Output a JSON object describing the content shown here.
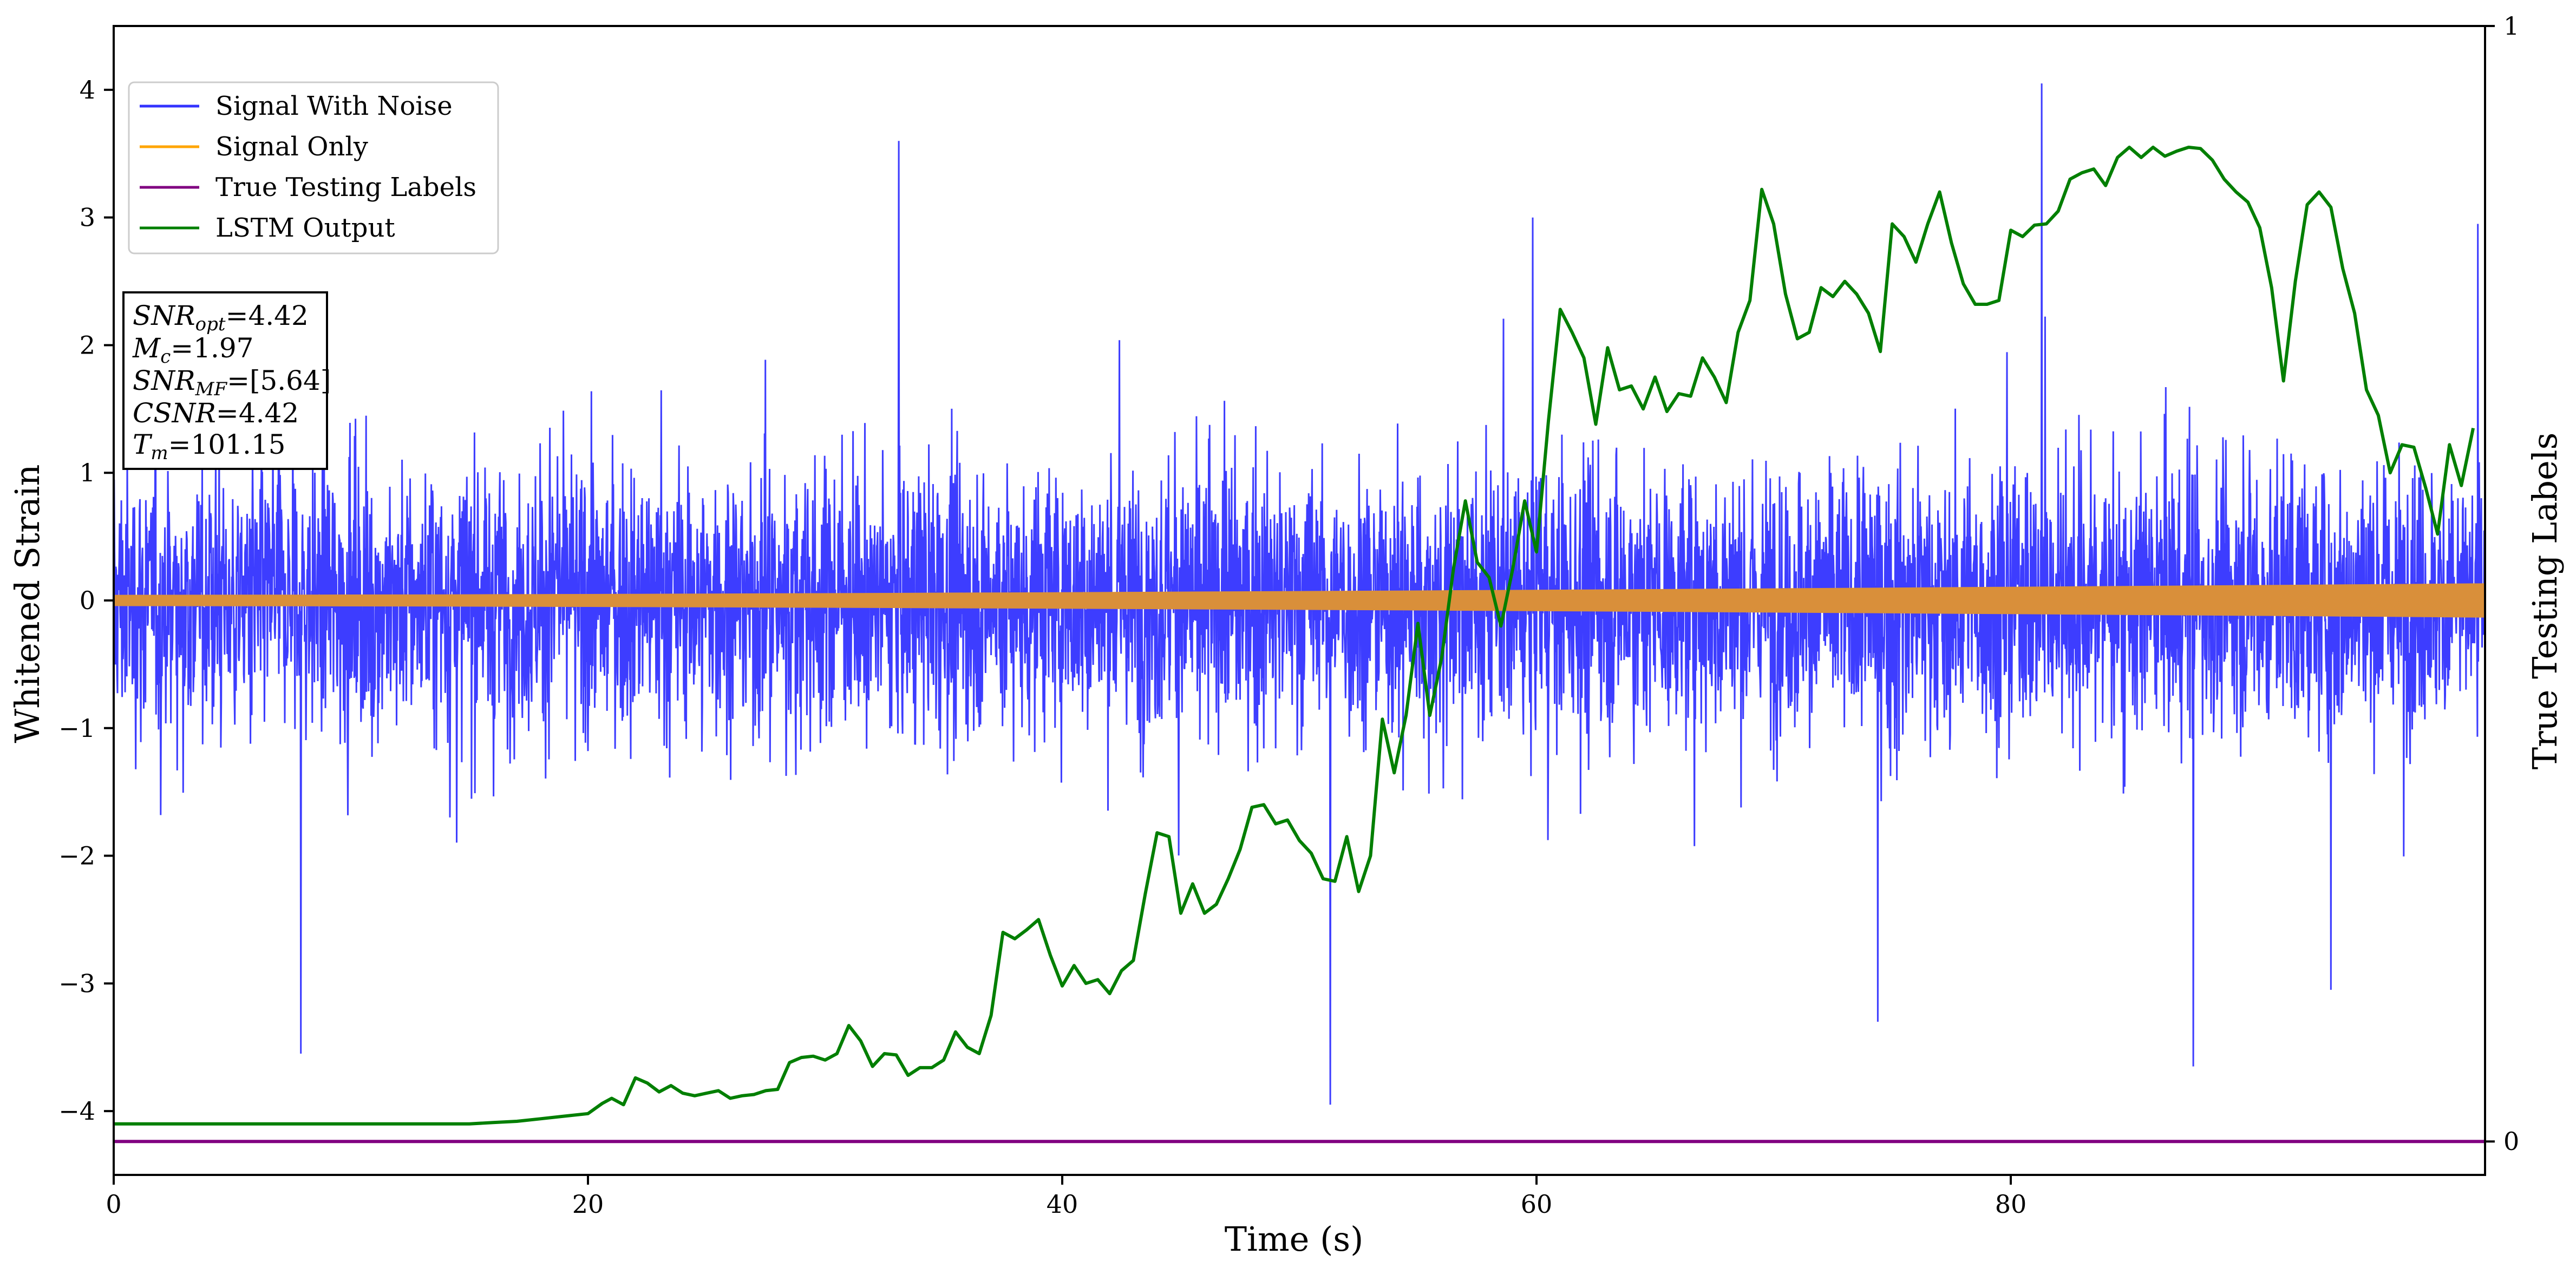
{
  "chart_data": {
    "type": "line",
    "xlabel": "Time (s)",
    "ylabel": "Whitened Strain",
    "y2label": "True Testing Labels",
    "xlim": [
      0,
      100
    ],
    "ylim": [
      -4.5,
      4.5
    ],
    "y2lim": [
      -0.03,
      1.0
    ],
    "xticks": [
      0,
      20,
      40,
      60,
      80
    ],
    "yticks": [
      -4,
      -3,
      -2,
      -1,
      0,
      1,
      2,
      3,
      4
    ],
    "y2ticks": [
      0,
      1
    ],
    "grid": false,
    "legend_position": "top-left",
    "series": [
      {
        "name": "Signal With Noise",
        "color": "#3333ff",
        "axis": "left",
        "description_values": {
          "typical_range": [
            -2.0,
            2.3
          ],
          "peaks": [
            {
              "x": 7.9,
              "y": -3.55
            },
            {
              "x": 33.1,
              "y": 3.6
            },
            {
              "x": 51.3,
              "y": -3.95
            },
            {
              "x": 74.4,
              "y": -3.3
            },
            {
              "x": 81.3,
              "y": 4.05
            },
            {
              "x": 87.7,
              "y": -3.65
            },
            {
              "x": 93.5,
              "y": -3.05
            },
            {
              "x": 99.7,
              "y": 2.95
            }
          ]
        }
      },
      {
        "name": "Signal Only",
        "color": "#ffa500",
        "axis": "left",
        "amplitude_start": 0.04,
        "amplitude_end": 0.13
      },
      {
        "name": "True Testing Labels",
        "color": "#800080",
        "axis": "right",
        "x": [
          0,
          100
        ],
        "y": [
          0,
          0
        ]
      },
      {
        "name": "LSTM Output",
        "color": "#007f00",
        "axis": "left",
        "x": [
          0,
          10,
          15,
          16,
          17,
          18,
          19,
          20,
          20.6,
          21,
          21.5,
          22,
          22.5,
          23,
          23.5,
          24,
          24.5,
          25,
          25.5,
          26,
          26.5,
          27,
          27.5,
          28,
          28.5,
          29,
          29.5,
          30,
          30.5,
          31,
          31.5,
          32,
          32.5,
          33,
          33.5,
          34,
          34.5,
          35,
          35.5,
          36,
          36.5,
          37,
          37.5,
          38,
          38.5,
          39,
          39.5,
          40,
          40.5,
          41,
          41.5,
          42,
          42.5,
          43,
          43.5,
          44,
          44.5,
          45,
          45.5,
          46,
          46.5,
          47,
          47.5,
          48,
          48.5,
          49,
          49.5,
          50,
          50.5,
          51,
          51.5,
          52,
          52.5,
          53,
          53.5,
          54,
          54.5,
          55,
          55.5,
          56,
          56.5,
          57,
          57.5,
          58,
          58.5,
          59,
          59.5,
          60,
          60.5,
          61,
          61.5,
          62,
          62.5,
          63,
          63.5,
          64,
          64.5,
          65,
          65.5,
          66,
          66.5,
          67,
          67.5,
          68,
          68.5,
          69,
          69.5,
          70,
          70.5,
          71,
          71.5,
          72,
          72.5,
          73,
          73.5,
          74,
          74.5,
          75,
          75.5,
          76,
          76.5,
          77,
          77.5,
          78,
          78.5,
          79,
          79.5,
          80,
          80.5,
          81,
          81.5,
          82,
          82.5,
          83,
          83.5,
          84,
          84.5,
          85,
          85.5,
          86,
          86.5,
          87,
          87.5,
          88,
          88.5,
          89,
          89.5,
          90,
          90.5,
          91,
          91.5,
          92,
          92.5,
          93,
          93.5,
          94,
          94.5,
          95,
          95.5,
          96,
          96.5,
          97,
          97.5,
          98,
          98.5,
          99,
          99.5
        ],
        "y": [
          -4.1,
          -4.1,
          -4.1,
          -4.09,
          -4.08,
          -4.06,
          -4.04,
          -4.02,
          -3.94,
          -3.9,
          -3.95,
          -3.74,
          -3.78,
          -3.85,
          -3.8,
          -3.86,
          -3.88,
          -3.86,
          -3.84,
          -3.9,
          -3.88,
          -3.87,
          -3.84,
          -3.83,
          -3.62,
          -3.58,
          -3.57,
          -3.6,
          -3.55,
          -3.33,
          -3.45,
          -3.65,
          -3.55,
          -3.56,
          -3.72,
          -3.66,
          -3.66,
          -3.6,
          -3.38,
          -3.5,
          -3.55,
          -3.25,
          -2.6,
          -2.65,
          -2.58,
          -2.5,
          -2.78,
          -3.02,
          -2.86,
          -3.0,
          -2.97,
          -3.08,
          -2.9,
          -2.82,
          -2.3,
          -1.82,
          -1.85,
          -2.45,
          -2.22,
          -2.45,
          -2.38,
          -2.18,
          -1.95,
          -1.62,
          -1.6,
          -1.75,
          -1.72,
          -1.88,
          -1.98,
          -2.18,
          -2.2,
          -1.85,
          -2.28,
          -2.0,
          -0.93,
          -1.35,
          -0.9,
          -0.18,
          -0.9,
          -0.45,
          0.25,
          0.78,
          0.3,
          0.18,
          -0.2,
          0.25,
          0.78,
          0.38,
          1.4,
          2.28,
          2.1,
          1.9,
          1.38,
          1.98,
          1.65,
          1.68,
          1.5,
          1.75,
          1.48,
          1.62,
          1.6,
          1.9,
          1.75,
          1.55,
          2.1,
          2.35,
          3.22,
          2.95,
          2.4,
          2.05,
          2.1,
          2.45,
          2.38,
          2.5,
          2.4,
          2.25,
          1.95,
          2.95,
          2.85,
          2.65,
          2.95,
          3.2,
          2.8,
          2.48,
          2.32,
          2.32,
          2.35,
          2.9,
          2.85,
          2.94,
          2.95,
          3.05,
          3.3,
          3.35,
          3.38,
          3.25,
          3.47,
          3.55,
          3.47,
          3.55,
          3.48,
          3.52,
          3.55,
          3.54,
          3.45,
          3.3,
          3.2,
          3.12,
          2.92,
          2.45,
          1.72,
          2.5,
          3.1,
          3.2,
          3.08,
          2.6,
          2.25,
          1.65,
          1.45,
          1.0,
          1.22,
          1.2,
          0.88,
          0.52,
          1.22,
          0.9,
          1.35
        ]
      }
    ],
    "annotation": {
      "snr_opt": {
        "sym": "SNR",
        "sub": "opt",
        "value": "=4.42"
      },
      "m_c": {
        "sym": "M",
        "sub": "c",
        "value": "=1.97"
      },
      "snr_mf": {
        "sym": "SNR",
        "sub": "MF",
        "value": "=[5.64]"
      },
      "csnr": {
        "sym": "CSNR",
        "sub": "",
        "value": "=4.42"
      },
      "t_m": {
        "sym": "T",
        "sub": "m",
        "value": "=101.15"
      }
    }
  }
}
